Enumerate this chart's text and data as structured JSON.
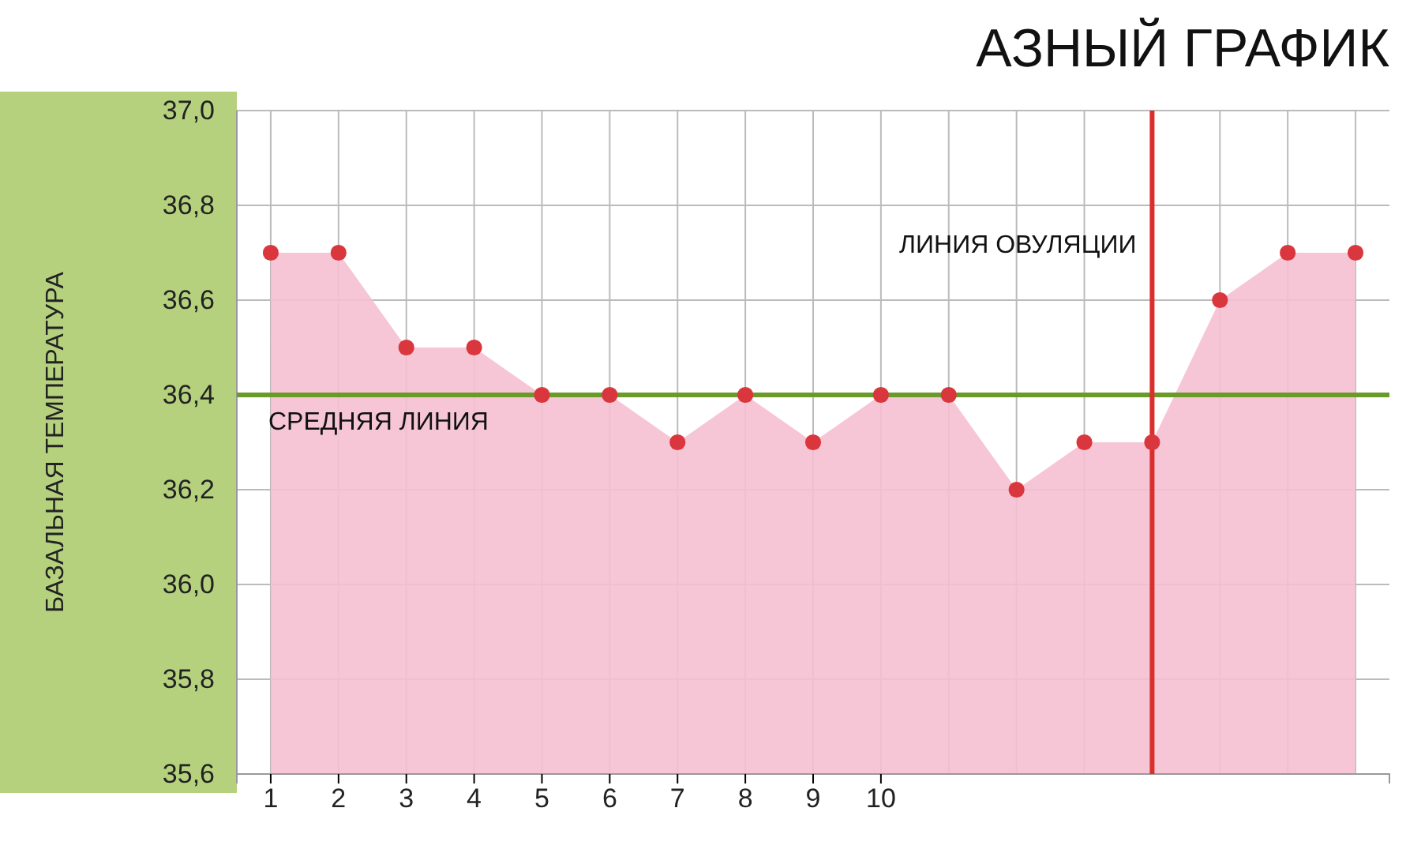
{
  "chart_data": {
    "type": "area",
    "title": "АЗНЫЙ ГРАФИК",
    "ylabel": "БАЗАЛЬНАЯ ТЕМПЕРАТУРА",
    "x": [
      1,
      2,
      3,
      4,
      5,
      6,
      7,
      8,
      9,
      10,
      11,
      12,
      13,
      14,
      15,
      16,
      17
    ],
    "series": [
      {
        "color": "#f5bfd1",
        "values": [
          36.7,
          36.7,
          36.5,
          36.5,
          36.4,
          36.4,
          36.3,
          36.4,
          36.3,
          36.4,
          36.4,
          36.2,
          36.3,
          36.3,
          36.6,
          36.7,
          36.7
        ]
      }
    ],
    "xlim": [
      0.5,
      17.5
    ],
    "xticks": [
      1,
      2,
      3,
      4,
      5,
      6,
      7,
      8,
      9,
      10
    ],
    "ylim": [
      35.6,
      37.0
    ],
    "yticks": [
      {
        "value": 35.6,
        "label": "35,6"
      },
      {
        "value": 35.8,
        "label": "35,8"
      },
      {
        "value": 36.0,
        "label": "36,0"
      },
      {
        "value": 36.2,
        "label": "36,2"
      },
      {
        "value": 36.4,
        "label": "36,4"
      },
      {
        "value": 36.6,
        "label": "36,6"
      },
      {
        "value": 36.8,
        "label": "36,8"
      },
      {
        "value": 37.0,
        "label": "37,0"
      }
    ],
    "ref_lines": [
      {
        "axis": "y",
        "value": 36.4,
        "label": "СРЕДНЯЯ ЛИНИЯ",
        "color": "#6a9a2a"
      },
      {
        "axis": "x",
        "value": 14,
        "label": "ЛИНИЯ ОВУЛЯЦИИ",
        "color": "#d9302e"
      }
    ],
    "grid": true,
    "marker": "circle"
  }
}
